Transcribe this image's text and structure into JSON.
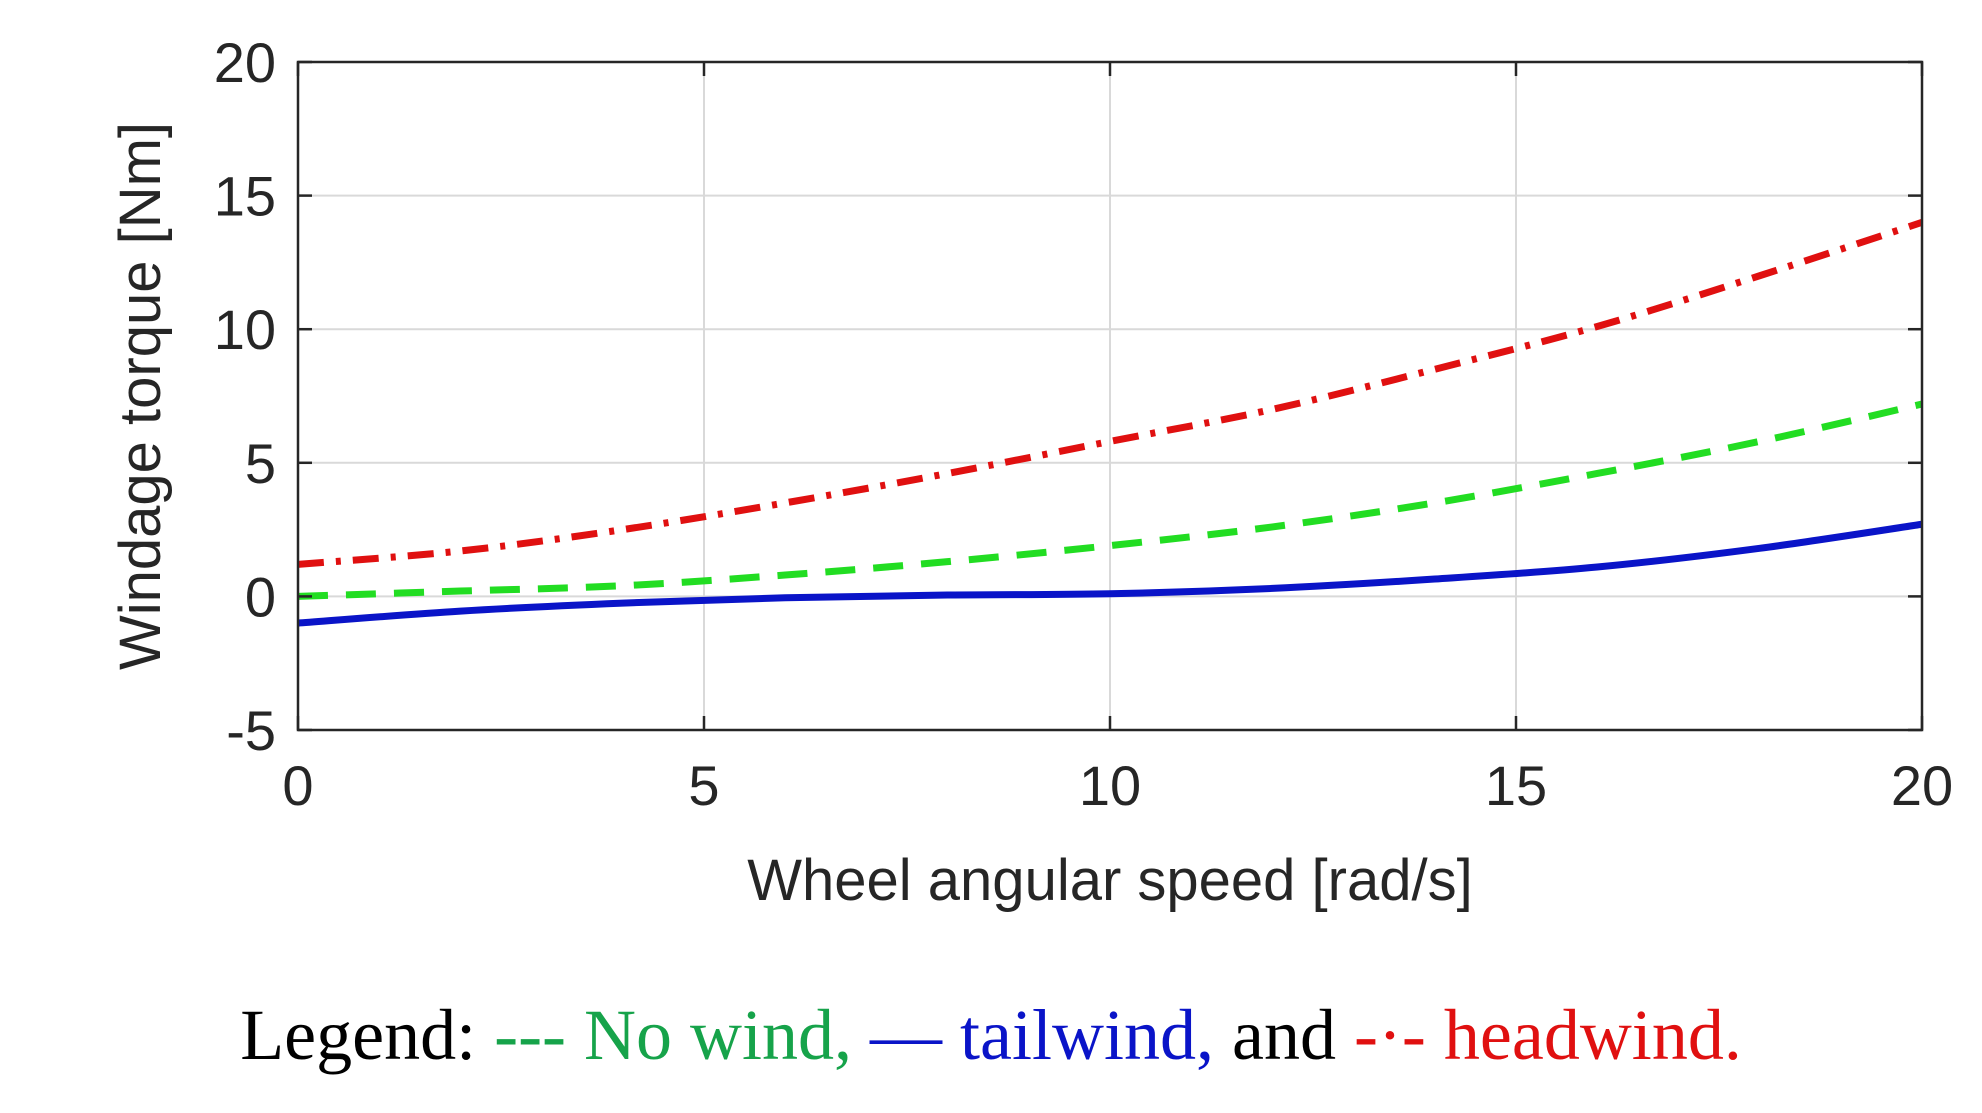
{
  "chart_data": {
    "type": "line",
    "xlabel": "Wheel angular speed [rad/s]",
    "ylabel": "Windage torque [Nm]",
    "xlim": [
      0,
      20
    ],
    "ylim": [
      -5,
      20
    ],
    "xticks": [
      0,
      5,
      10,
      15,
      20
    ],
    "yticks": [
      -5,
      0,
      5,
      10,
      15,
      20
    ],
    "grid": true,
    "x": [
      0,
      2,
      4,
      6,
      8,
      10,
      12,
      14,
      16,
      18,
      20
    ],
    "series": [
      {
        "name": "No wind",
        "style": "dashed",
        "color": "#22dd22",
        "values": [
          0.0,
          0.2,
          0.4,
          0.8,
          1.3,
          1.9,
          2.6,
          3.5,
          4.6,
          5.8,
          7.2
        ]
      },
      {
        "name": "tailwind",
        "style": "solid",
        "color": "#0a14c8",
        "values": [
          -1.0,
          -0.55,
          -0.25,
          -0.05,
          0.05,
          0.1,
          0.3,
          0.65,
          1.1,
          1.8,
          2.7
        ]
      },
      {
        "name": "headwind",
        "style": "dash-dot",
        "color": "#e01010",
        "values": [
          1.2,
          1.7,
          2.5,
          3.5,
          4.6,
          5.8,
          7.0,
          8.5,
          10.1,
          12.0,
          14.0
        ]
      }
    ]
  },
  "legend": {
    "prefix": "Legend: ",
    "no_wind": "--- No wind, ",
    "tailwind": "— tailwind, ",
    "and": "and ",
    "headwind": "-·- headwind.",
    "colors": {
      "prefix": "#000000",
      "no_wind": "#16a34a",
      "tailwind": "#0a14c8",
      "and": "#000000",
      "headwind": "#e01010"
    }
  }
}
